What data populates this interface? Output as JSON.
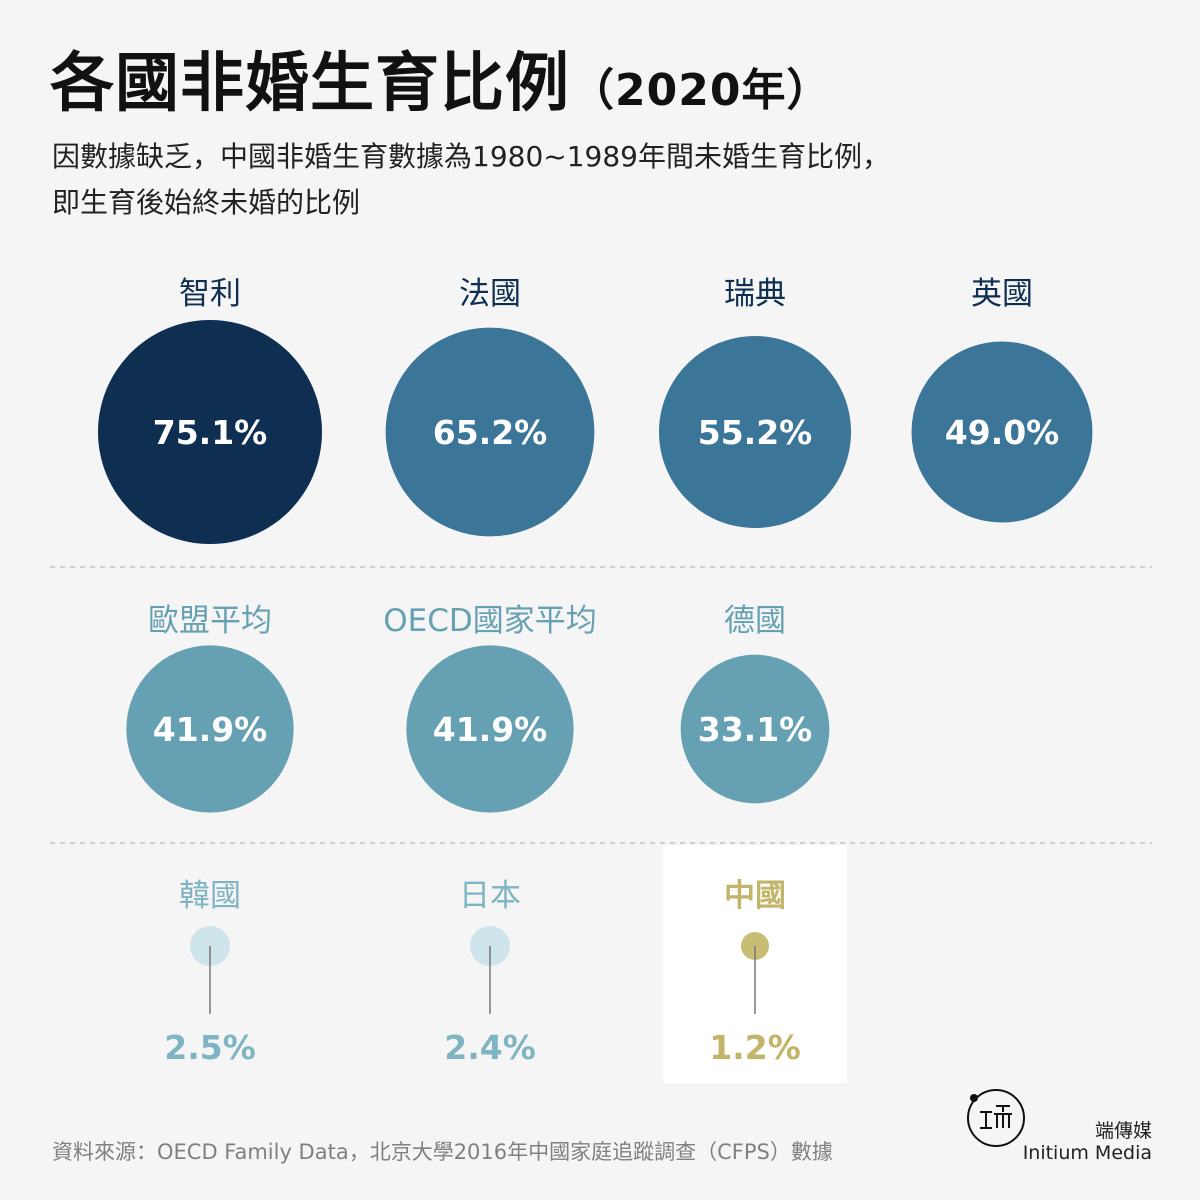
{
  "header": {
    "title": "各國非婚生育比例",
    "title_year": "（2020年）",
    "subtitle_line1": "因數據缺乏，中國非婚生育數據為1980~1989年間未婚生育比例，",
    "subtitle_line2": "即生育後始終未婚的比例"
  },
  "chart_data": {
    "type": "bubble",
    "unit": "%",
    "rows": [
      {
        "items": [
          {
            "name": "智利",
            "value": 75.1,
            "label": "75.1%",
            "color": "#0f2f52"
          },
          {
            "name": "法國",
            "value": 65.2,
            "label": "65.2%",
            "color": "#3b7699"
          },
          {
            "name": "瑞典",
            "value": 55.2,
            "label": "55.2%",
            "color": "#3b7699"
          },
          {
            "name": "英國",
            "value": 49.0,
            "label": "49.0%",
            "color": "#3b7699"
          }
        ]
      },
      {
        "items": [
          {
            "name": "歐盟平均",
            "value": 41.9,
            "label": "41.9%",
            "color": "#66a1b3"
          },
          {
            "name": "OECD國家平均",
            "value": 41.9,
            "label": "41.9%",
            "color": "#66a1b3"
          },
          {
            "name": "德國",
            "value": 33.1,
            "label": "33.1%",
            "color": "#66a1b3"
          }
        ]
      },
      {
        "items": [
          {
            "name": "韓國",
            "value": 2.5,
            "label": "2.5%",
            "color": "#cde4ea",
            "text_color": "#7fb4c3"
          },
          {
            "name": "日本",
            "value": 2.4,
            "label": "2.4%",
            "color": "#cde4ea",
            "text_color": "#7fb4c3"
          },
          {
            "name": "中國",
            "value": 1.2,
            "label": "1.2%",
            "color": "#c8bd74",
            "text_color": "#c2b468",
            "highlight": true
          }
        ]
      }
    ]
  },
  "footer": {
    "source": "資料來源：OECD Family Data，北京大學2016年中國家庭追蹤調查（CFPS）數據",
    "brand_zh": "端傳媒",
    "brand_en": "Initium Media"
  }
}
